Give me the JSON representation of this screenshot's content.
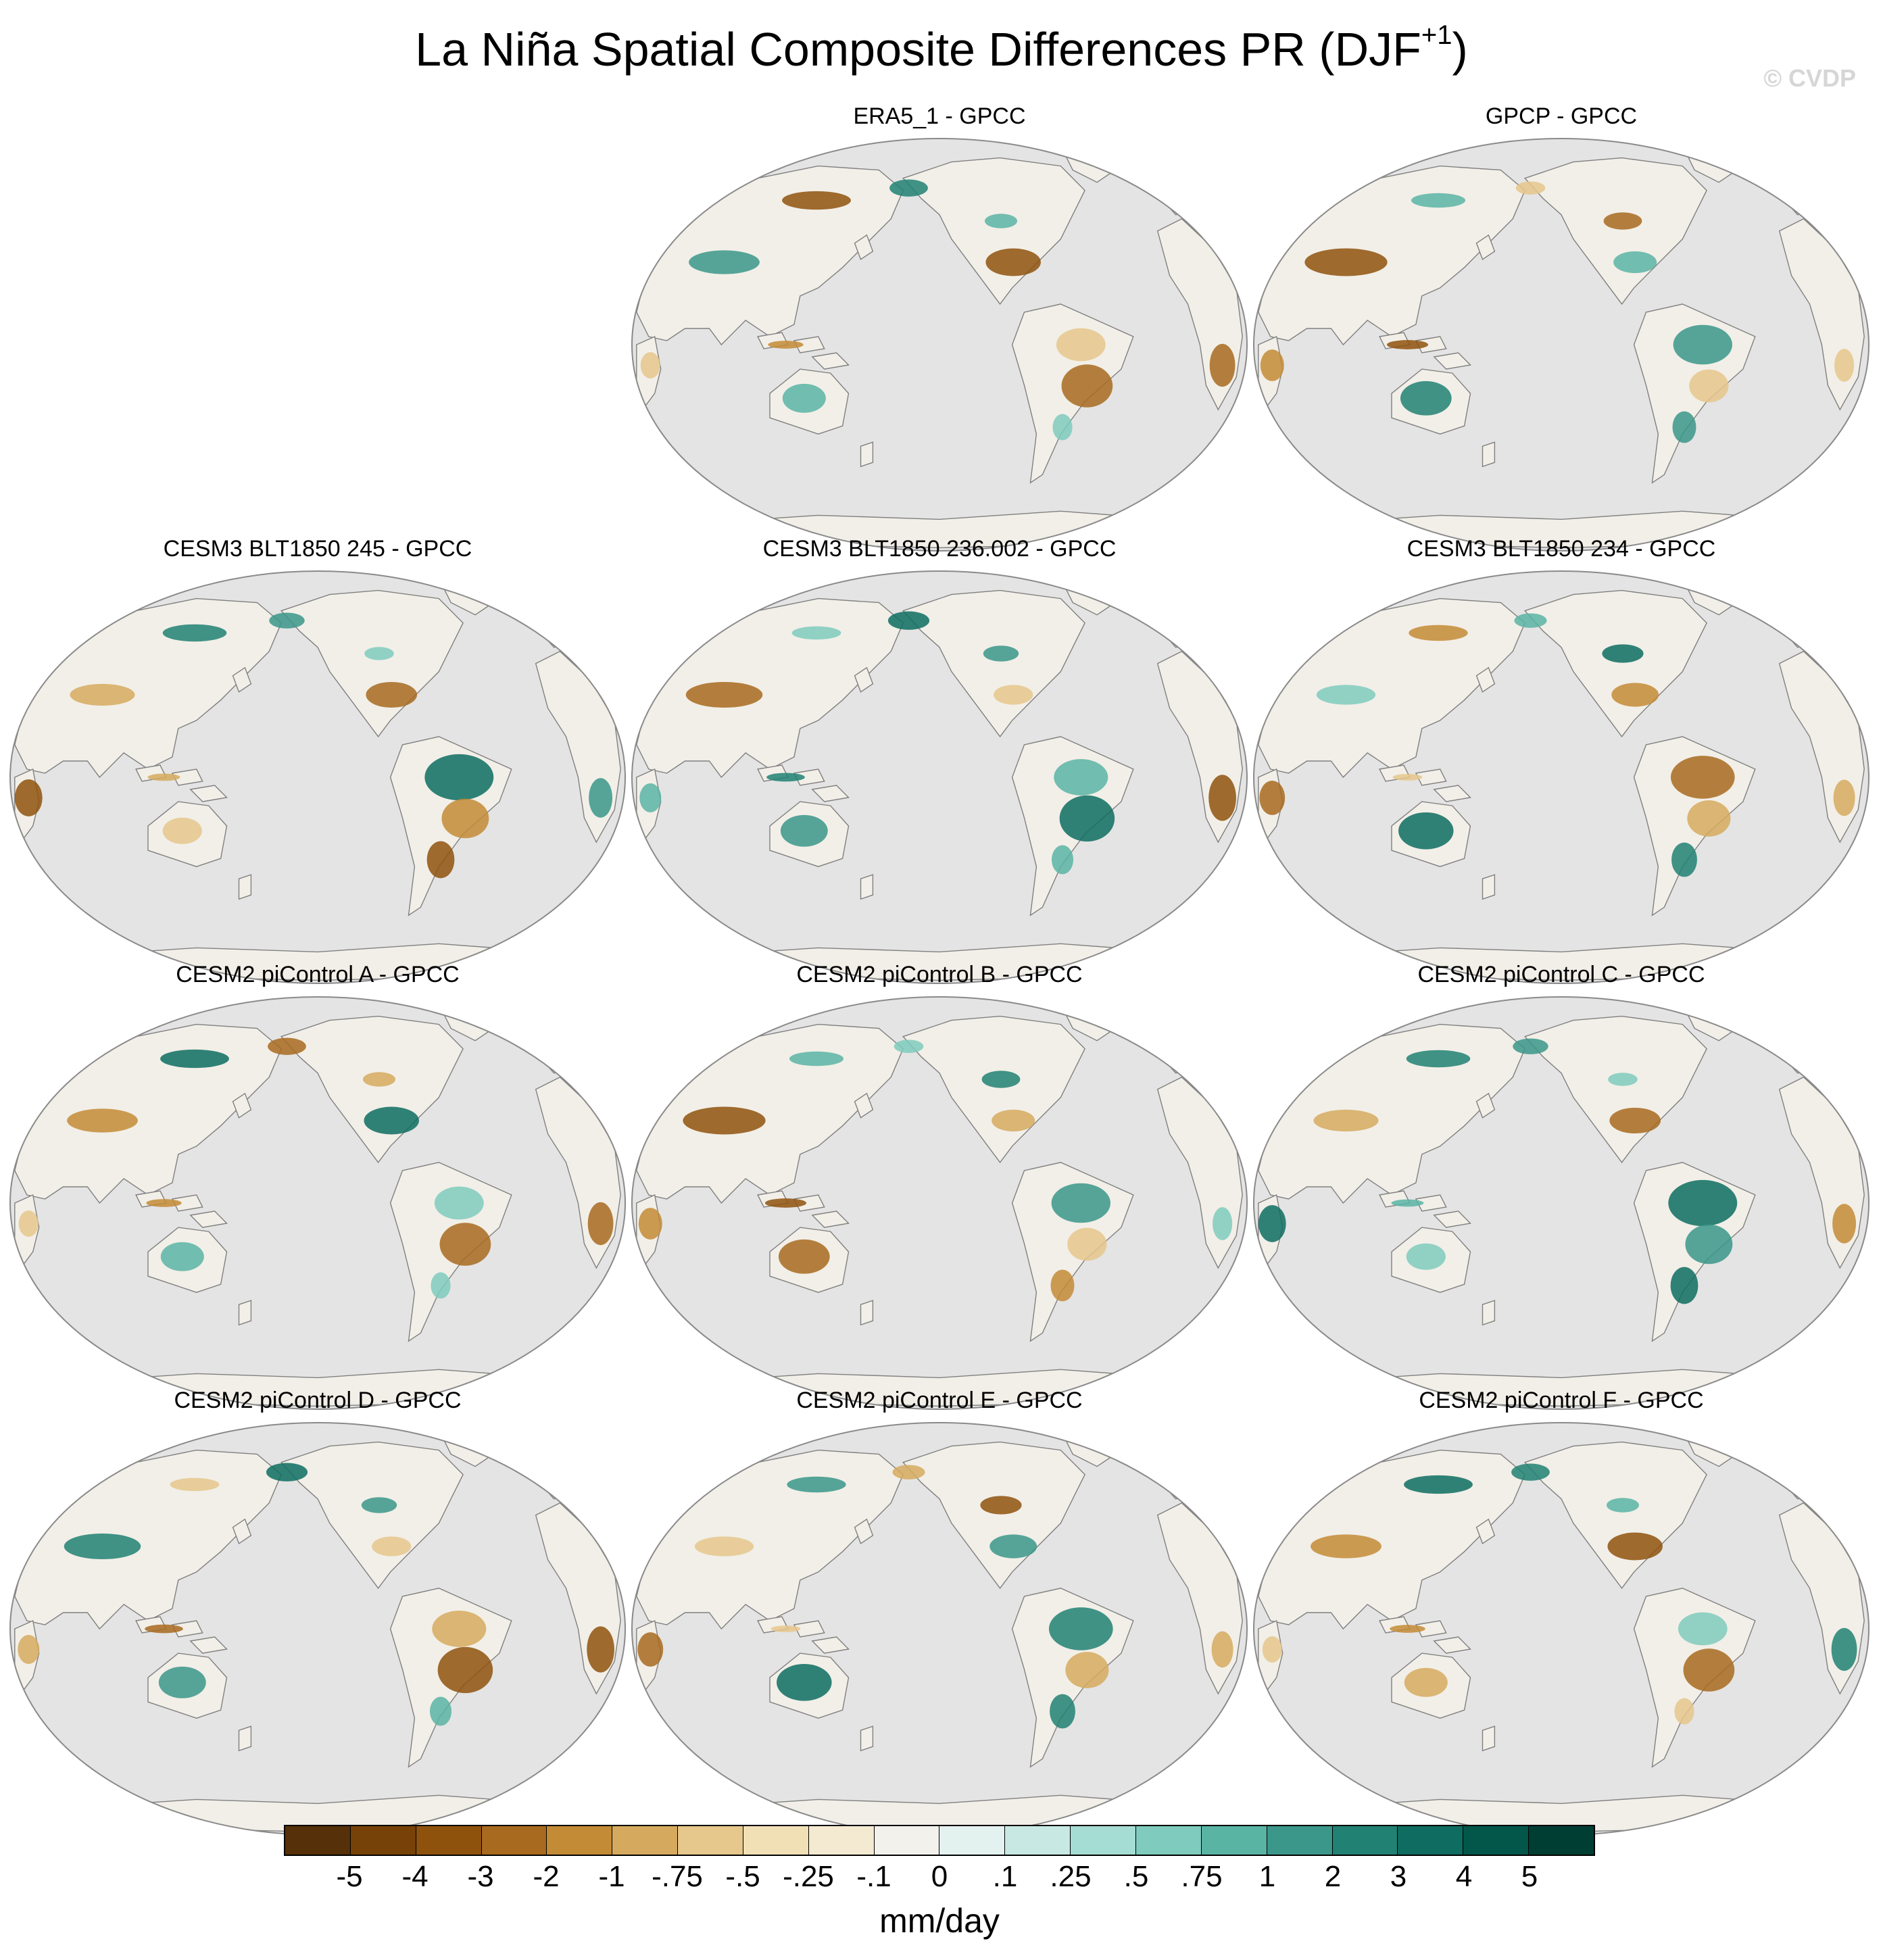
{
  "title": {
    "main": "La Niña Spatial Composite Differences PR (DJF",
    "superscript": "+1",
    "close": ")"
  },
  "copyright": "© CVDP",
  "panels": [
    {
      "title": "ERA5_1 - GPCC",
      "row": 0,
      "col": 1
    },
    {
      "title": "GPCP - GPCC",
      "row": 0,
      "col": 2
    },
    {
      "title": "CESM3 BLT1850 245 - GPCC",
      "row": 1,
      "col": 0
    },
    {
      "title": "CESM3 BLT1850 236.002 - GPCC",
      "row": 1,
      "col": 1
    },
    {
      "title": "CESM3 BLT1850 234 - GPCC",
      "row": 1,
      "col": 2
    },
    {
      "title": "CESM2 piControl A - GPCC",
      "row": 2,
      "col": 0
    },
    {
      "title": "CESM2 piControl B - GPCC",
      "row": 2,
      "col": 1
    },
    {
      "title": "CESM2 piControl C - GPCC",
      "row": 2,
      "col": 2
    },
    {
      "title": "CESM2 piControl D - GPCC",
      "row": 3,
      "col": 0
    },
    {
      "title": "CESM2 piControl E - GPCC",
      "row": 3,
      "col": 1
    },
    {
      "title": "CESM2 piControl F - GPCC",
      "row": 3,
      "col": 2
    }
  ],
  "colorbar": {
    "labels": [
      "-5",
      "-4",
      "-3",
      "-2",
      "-1",
      "-.75",
      "-.5",
      "-.25",
      "-.1",
      "0",
      ".1",
      ".25",
      ".5",
      ".75",
      "1",
      "2",
      "3",
      "4",
      "5"
    ],
    "colors": [
      "#553008",
      "#774208",
      "#8f520d",
      "#a86a1e",
      "#c48b36",
      "#d6aa5e",
      "#e6c78c",
      "#f1dfb6",
      "#f4ead2",
      "#f3f1ec",
      "#e3f1ef",
      "#c8e9e3",
      "#a5dcd3",
      "#7fcbbd",
      "#5ab4a4",
      "#3b978a",
      "#218173",
      "#0e6d60",
      "#03574a",
      "#003e34"
    ],
    "units": "mm/day"
  },
  "map_colors": {
    "ocean": "#e4e4e4",
    "land_base": "#f2efe8",
    "coastline": "#808080",
    "outline": "#8a8a8a"
  }
}
